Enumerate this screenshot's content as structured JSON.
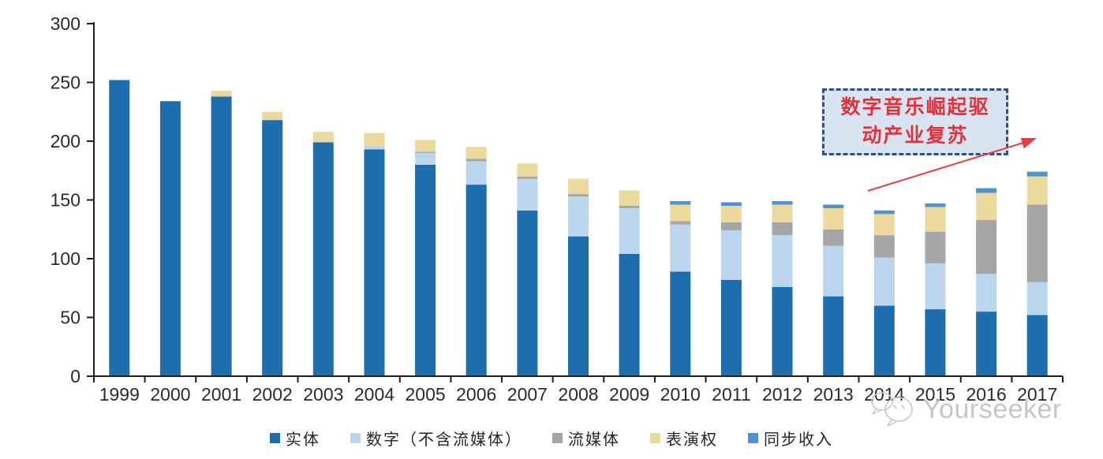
{
  "chart_data": {
    "type": "bar",
    "stacked": true,
    "title": "",
    "xlabel": "",
    "ylabel": "",
    "ylim": [
      0,
      300
    ],
    "ytick_step": 50,
    "yticks": [
      0,
      50,
      100,
      150,
      200,
      250,
      300
    ],
    "grid": false,
    "legend_position": "bottom",
    "categories": [
      "1999",
      "2000",
      "2001",
      "2002",
      "2003",
      "2004",
      "2005",
      "2006",
      "2007",
      "2008",
      "2009",
      "2010",
      "2011",
      "2012",
      "2013",
      "2014",
      "2015",
      "2016",
      "2017"
    ],
    "series": [
      {
        "id": "physical",
        "name": "实体",
        "color": "#1E6DAC",
        "values": [
          252,
          234,
          238,
          218,
          199,
          193,
          180,
          163,
          141,
          119,
          104,
          89,
          82,
          76,
          68,
          60,
          57,
          55,
          52
        ]
      },
      {
        "id": "digital-ex-streaming",
        "name": "数字（不含流媒体）",
        "color": "#BCD6EE",
        "values": [
          0,
          0,
          0,
          0,
          0,
          3,
          10,
          20,
          27,
          34,
          39,
          40,
          42,
          44,
          43,
          41,
          39,
          32,
          28
        ]
      },
      {
        "id": "streaming",
        "name": "流媒体",
        "color": "#A6A6A6",
        "values": [
          0,
          0,
          0,
          0,
          0,
          0,
          1,
          2,
          2,
          2,
          2,
          3,
          7,
          11,
          14,
          19,
          27,
          46,
          66
        ]
      },
      {
        "id": "performance-rights",
        "name": "表演权",
        "color": "#EBD99E",
        "values": [
          0,
          0,
          5,
          7,
          9,
          11,
          10,
          10,
          11,
          13,
          13,
          14,
          14,
          15,
          18,
          18,
          21,
          23,
          24
        ]
      },
      {
        "id": "sync-revenue",
        "name": "同步收入",
        "color": "#4E92D0",
        "values": [
          0,
          0,
          0,
          0,
          0,
          0,
          0,
          0,
          0,
          0,
          0,
          3,
          3,
          3,
          3,
          3,
          3,
          4,
          4
        ]
      }
    ]
  },
  "annotation": {
    "line1": "数字音乐崛起驱",
    "line2": "动产业复苏",
    "text_color": "#E2333A",
    "box_fill": "#D9E4F2",
    "box_border": "#31507E",
    "arrow_color": "#EE3B43"
  },
  "watermark": {
    "text": "Yourseeker",
    "color": "#C6C6C6"
  },
  "axis": {
    "line_color": "#1F1F1F",
    "label_color": "#2B2B2B"
  }
}
